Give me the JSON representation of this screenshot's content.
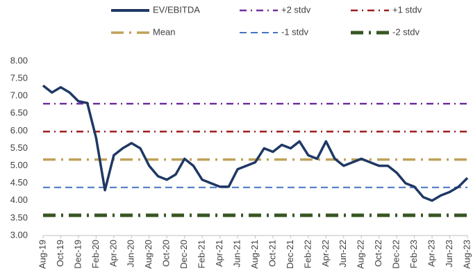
{
  "chart_data": {
    "type": "line",
    "categories": [
      "Aug-19",
      null,
      "Oct-19",
      null,
      "Dec-19",
      null,
      "Feb-20",
      null,
      "Apr-20",
      null,
      "Jun-20",
      null,
      "Aug-20",
      null,
      "Oct-20",
      null,
      "Dec-20",
      null,
      "Feb-21",
      null,
      "Apr-21",
      null,
      "Jun-21",
      null,
      "Aug-21",
      null,
      "Oct-21",
      null,
      "Dec-21",
      null,
      "Feb-22",
      null,
      "Apr-22",
      null,
      "Jun-22",
      null,
      "Aug-22",
      null,
      "Oct-22",
      null,
      "Dec-22",
      null,
      "Feb-23",
      null,
      "Apr-23",
      null,
      "Jun-23",
      null,
      "Aug-23"
    ],
    "series": [
      {
        "name": "EV/EBITDA",
        "color": "#1f3864",
        "values": [
          7.3,
          7.1,
          7.25,
          7.1,
          6.85,
          6.8,
          5.8,
          4.3,
          5.3,
          5.5,
          5.65,
          5.5,
          5.0,
          4.7,
          4.6,
          4.75,
          5.2,
          5.0,
          4.6,
          4.5,
          4.4,
          4.4,
          4.9,
          5.0,
          5.1,
          5.5,
          5.4,
          5.6,
          5.5,
          5.7,
          5.3,
          5.2,
          5.7,
          5.2,
          5.0,
          5.1,
          5.2,
          5.1,
          5.0,
          5.0,
          4.8,
          4.5,
          4.4,
          4.1,
          4.0,
          4.15,
          4.25,
          4.4,
          4.65
        ]
      }
    ],
    "reference_lines": [
      {
        "name": "+2 stdv",
        "color": "#7030a0",
        "value": 6.78,
        "style": "dashdot"
      },
      {
        "name": "+1 stdv",
        "color": "#9e1b1b",
        "value": 5.98,
        "style": "dashdot"
      },
      {
        "name": "Mean",
        "color": "#bfa25a",
        "value": 5.18,
        "style": "longdashdot"
      },
      {
        "name": "-1 stdv",
        "color": "#4472c4",
        "value": 4.38,
        "style": "dash"
      },
      {
        "name": "-2 stdv",
        "color": "#375623",
        "value": 3.58,
        "style": "thickdashdot"
      }
    ],
    "ylim": [
      3,
      8
    ],
    "yticks": [
      {
        "value": 3,
        "label": "3.00"
      },
      {
        "value": 3.5,
        "label": "3.50"
      },
      {
        "value": 4,
        "label": "4.00"
      },
      {
        "value": 4.5,
        "label": "4.50"
      },
      {
        "value": 5,
        "label": "5.00"
      },
      {
        "value": 5.5,
        "label": "5.50"
      },
      {
        "value": 6,
        "label": "6.00"
      },
      {
        "value": 6.5,
        "label": "6.50"
      },
      {
        "value": 7,
        "label": "7.00"
      },
      {
        "value": 7.5,
        "label": "7.50"
      },
      {
        "value": 8,
        "label": "8.00"
      }
    ]
  }
}
